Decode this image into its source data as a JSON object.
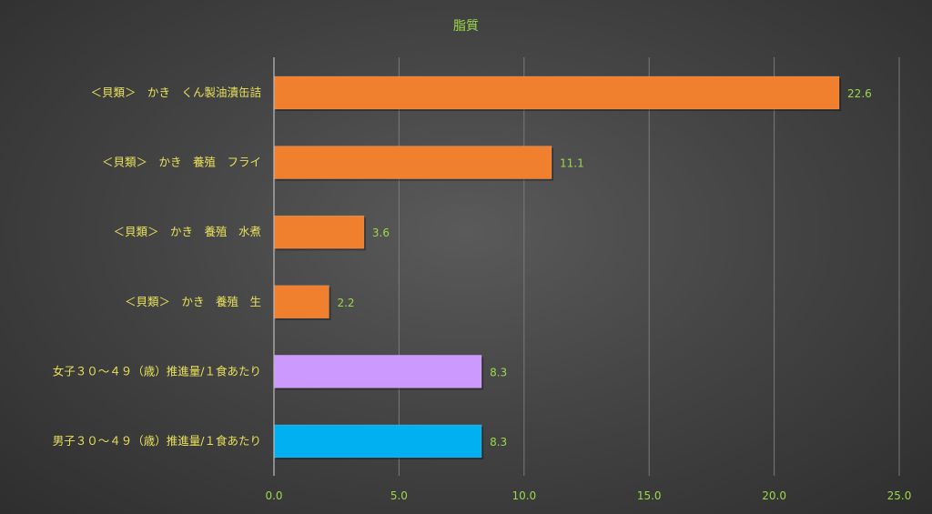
{
  "chart_data": {
    "type": "bar",
    "orientation": "horizontal",
    "title": "脂質",
    "categories": [
      "＜貝類＞　かき　くん製油漬缶詰",
      "＜貝類＞　かき　養殖　フライ",
      "＜貝類＞　かき　養殖　水煮",
      "＜貝類＞　かき　養殖　生",
      "女子３０～４９（歳）推進量/１食あたり",
      "男子３０～４９（歳）推進量/１食あたり"
    ],
    "values": [
      22.6,
      11.1,
      3.6,
      2.2,
      8.3,
      8.3
    ],
    "value_labels": [
      "22.6",
      "11.1",
      "3.6",
      "2.2",
      "8.3",
      "8.3"
    ],
    "bar_colors": [
      "#f07f2e",
      "#f07f2e",
      "#f07f2e",
      "#f07f2e",
      "#cc99ff",
      "#00b0f0"
    ],
    "xlim": [
      0,
      25
    ],
    "xticks": [
      "0.0",
      "5.0",
      "10.0",
      "15.0",
      "20.0",
      "25.0"
    ],
    "grid": true,
    "colors": {
      "category_text": "#e8e05a",
      "value_text": "#9bd84a",
      "gridline": "#7a7a7a"
    }
  }
}
